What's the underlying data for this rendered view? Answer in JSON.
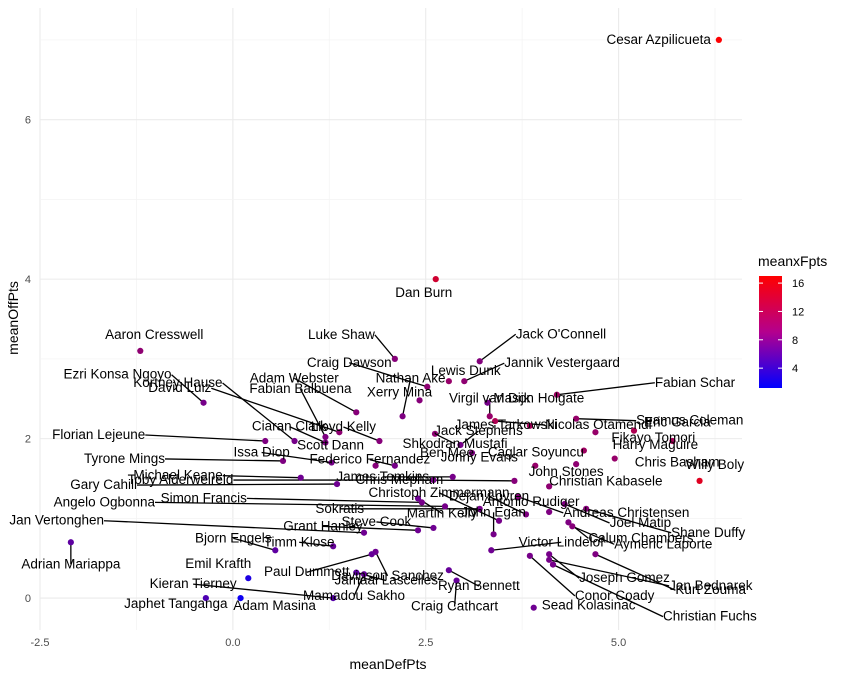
{
  "chart_data": {
    "type": "scatter",
    "title": "",
    "xlabel": "meanDefPts",
    "ylabel": "meanOffPts",
    "xlim": [
      -2.5,
      6.6
    ],
    "ylim": [
      -0.4,
      7.4
    ],
    "xticks": [
      -2.5,
      0.0,
      2.5,
      5.0
    ],
    "xtick_labels": [
      "-2.5",
      "0.0",
      "2.5",
      "5.0"
    ],
    "yticks": [
      0,
      2,
      4,
      6
    ],
    "ytick_labels": [
      "0",
      "2",
      "4",
      "6"
    ],
    "grid": true,
    "color_legend": {
      "title": "meanxFpts",
      "ticks": [
        4,
        8,
        12,
        16
      ],
      "tick_labels": [
        "4",
        "8",
        "12",
        "16"
      ],
      "range": [
        1.2,
        17.0
      ],
      "low_color": "#0000ff",
      "high_color": "#ff0000",
      "placement": "right"
    },
    "points": [
      {
        "name": "Cesar Azpilicueta",
        "x": 6.3,
        "y": 7.0,
        "c": 16.9
      },
      {
        "name": "Dan Burn",
        "x": 2.63,
        "y": 4.0,
        "c": 14.0
      },
      {
        "name": "Aaron Cresswell",
        "x": -1.2,
        "y": 3.1,
        "c": 10.0
      },
      {
        "name": "Luke Shaw",
        "x": 2.1,
        "y": 3.0,
        "c": 9.5
      },
      {
        "name": "Jack O'Connell",
        "x": 3.2,
        "y": 2.97,
        "c": 9.3
      },
      {
        "name": "Lewis Dunk",
        "x": 2.8,
        "y": 2.72,
        "c": 10.5
      },
      {
        "name": "Craig Dawson",
        "x": 2.52,
        "y": 2.65,
        "c": 10.0
      },
      {
        "name": "Jannik Vestergaard",
        "x": 3.0,
        "y": 2.72,
        "c": 10.0
      },
      {
        "name": "Xerry Mina",
        "x": 2.42,
        "y": 2.48,
        "c": 9.5
      },
      {
        "name": "Mason Holgate",
        "x": 3.3,
        "y": 2.45,
        "c": 8.5
      },
      {
        "name": "Fabian Schar",
        "x": 4.2,
        "y": 2.55,
        "c": 11.0
      },
      {
        "name": "Ezri Konsa Ngoyo",
        "x": -0.38,
        "y": 2.45,
        "c": 8.5
      },
      {
        "name": "Adam Webster",
        "x": 1.6,
        "y": 2.33,
        "c": 9.5
      },
      {
        "name": "Kortney Hause",
        "x": 0.8,
        "y": 1.97,
        "c": 8.5
      },
      {
        "name": "Fabian Balbuena",
        "x": 1.2,
        "y": 2.02,
        "c": 9.0
      },
      {
        "name": "Nathan Ake",
        "x": 2.2,
        "y": 2.28,
        "c": 9.0
      },
      {
        "name": "Virgil van Dijk",
        "x": 3.33,
        "y": 2.28,
        "c": 10.5
      },
      {
        "name": "Nicolas Otamendi",
        "x": 3.4,
        "y": 2.22,
        "c": 12.0
      },
      {
        "name": "Seamus Coleman",
        "x": 4.45,
        "y": 2.25,
        "c": 10.5
      },
      {
        "name": "David Luiz",
        "x": 1.38,
        "y": 2.08,
        "c": 10.0
      },
      {
        "name": "Ciaran Clark",
        "x": 1.2,
        "y": 1.95,
        "c": 9.0
      },
      {
        "name": "Shkodran Mustafi",
        "x": 2.62,
        "y": 2.06,
        "c": 10.0
      },
      {
        "name": "James Tarkowski",
        "x": 3.85,
        "y": 2.16,
        "c": 11.5
      },
      {
        "name": "Eric Garcia",
        "x": 5.2,
        "y": 2.1,
        "c": 12.0
      },
      {
        "name": "Florian Lejeune",
        "x": 0.42,
        "y": 1.97,
        "c": 9.0
      },
      {
        "name": "Lloyd Kelly",
        "x": 1.9,
        "y": 1.97,
        "c": 9.5
      },
      {
        "name": "Jack Stephens",
        "x": 2.95,
        "y": 1.92,
        "c": 8.5
      },
      {
        "name": "Ben Mee",
        "x": 3.1,
        "y": 1.82,
        "c": 9.0
      },
      {
        "name": "Caglar Soyuncu",
        "x": 4.55,
        "y": 1.85,
        "c": 11.0
      },
      {
        "name": "Fikayo Tomori",
        "x": 4.7,
        "y": 2.08,
        "c": 10.5
      },
      {
        "name": "Harry Maguire",
        "x": 5.7,
        "y": 1.97,
        "c": 11.5
      },
      {
        "name": "Tyrone Mings",
        "x": 0.65,
        "y": 1.72,
        "c": 9.0
      },
      {
        "name": "Issa Diop",
        "x": 1.28,
        "y": 1.7,
        "c": 8.5
      },
      {
        "name": "Federico Fernandez",
        "x": 2.1,
        "y": 1.66,
        "c": 8.5
      },
      {
        "name": "Scott Dann",
        "x": 1.85,
        "y": 1.66,
        "c": 9.5
      },
      {
        "name": "Jonny Evans",
        "x": 3.92,
        "y": 1.66,
        "c": 10.5
      },
      {
        "name": "John Stones",
        "x": 4.45,
        "y": 1.68,
        "c": 10.0
      },
      {
        "name": "Chris Basham",
        "x": 4.95,
        "y": 1.75,
        "c": 10.5
      },
      {
        "name": "Willy Boly",
        "x": 6.05,
        "y": 1.47,
        "c": 15.0
      },
      {
        "name": "Michael Keane",
        "x": 0.88,
        "y": 1.51,
        "c": 8.0
      },
      {
        "name": "Chris Mepham",
        "x": 3.65,
        "y": 1.47,
        "c": 9.5
      },
      {
        "name": "Christian Kabasele",
        "x": 4.1,
        "y": 1.4,
        "c": 10.0
      },
      {
        "name": "Gary Cahill",
        "x": 1.35,
        "y": 1.43,
        "c": 8.0
      },
      {
        "name": "Toby Alderweireld",
        "x": 2.6,
        "y": 1.48,
        "c": 8.5
      },
      {
        "name": "James Tomkins",
        "x": 2.85,
        "y": 1.52,
        "c": 8.5
      },
      {
        "name": "Martin Kelly",
        "x": 2.4,
        "y": 1.25,
        "c": 8.0
      },
      {
        "name": "Andreas Christensen",
        "x": 3.7,
        "y": 1.27,
        "c": 9.5
      },
      {
        "name": "Angelo Ogbonna",
        "x": 2.75,
        "y": 1.15,
        "c": 8.5
      },
      {
        "name": "Simon Francis",
        "x": 2.45,
        "y": 1.2,
        "c": 8.5
      },
      {
        "name": "Sokratis",
        "x": 3.2,
        "y": 1.12,
        "c": 8.5
      },
      {
        "name": "Dejan Lovren",
        "x": 3.8,
        "y": 1.05,
        "c": 9.0
      },
      {
        "name": "Joel Matip",
        "x": 4.3,
        "y": 1.18,
        "c": 9.0
      },
      {
        "name": "Shane Duffy",
        "x": 4.58,
        "y": 1.12,
        "c": 9.5
      },
      {
        "name": "Jan Vertonghen",
        "x": 1.7,
        "y": 0.82,
        "c": 8.0
      },
      {
        "name": "Grant Hanley",
        "x": 2.4,
        "y": 0.85,
        "c": 8.0
      },
      {
        "name": "Steve Cook",
        "x": 2.6,
        "y": 0.88,
        "c": 8.0
      },
      {
        "name": "Christoph Zimmermann",
        "x": 3.45,
        "y": 0.97,
        "c": 8.5
      },
      {
        "name": "Antonio Rudiger",
        "x": 4.1,
        "y": 1.08,
        "c": 9.0
      },
      {
        "name": "Calum Chambers",
        "x": 4.35,
        "y": 0.95,
        "c": 9.0
      },
      {
        "name": "Aymeric Laporte",
        "x": 4.4,
        "y": 0.9,
        "c": 9.5
      },
      {
        "name": "John Egan",
        "x": 3.38,
        "y": 0.8,
        "c": 8.5
      },
      {
        "name": "Bjorn Engels",
        "x": 0.55,
        "y": 0.6,
        "c": 7.0
      },
      {
        "name": "Timm Klose",
        "x": 1.3,
        "y": 0.65,
        "c": 7.5
      },
      {
        "name": "Davinson Sanchez",
        "x": 1.85,
        "y": 0.58,
        "c": 8.0
      },
      {
        "name": "Victor Lindelof",
        "x": 3.35,
        "y": 0.6,
        "c": 8.0
      },
      {
        "name": "Joseph Gomez",
        "x": 4.1,
        "y": 0.55,
        "c": 8.5
      },
      {
        "name": "Kurt Zouma",
        "x": 4.7,
        "y": 0.55,
        "c": 9.0
      },
      {
        "name": "Adrian Mariappa",
        "x": -2.1,
        "y": 0.7,
        "c": 7.0
      },
      {
        "name": "Paul Dummett",
        "x": 1.8,
        "y": 0.55,
        "c": 7.5
      },
      {
        "name": "Emil Krafth",
        "x": 0.2,
        "y": 0.25,
        "c": 3.0
      },
      {
        "name": "Jamaal Lascelles",
        "x": 1.6,
        "y": 0.32,
        "c": 7.0
      },
      {
        "name": "Ryan Bennett",
        "x": 2.8,
        "y": 0.35,
        "c": 7.5
      },
      {
        "name": "Conor Coady",
        "x": 3.85,
        "y": 0.53,
        "c": 8.5
      },
      {
        "name": "Jan Bednarek",
        "x": 4.1,
        "y": 0.48,
        "c": 8.5
      },
      {
        "name": "Christian Fuchs",
        "x": 4.15,
        "y": 0.42,
        "c": 8.5
      },
      {
        "name": "Mamadou Sakho",
        "x": 1.7,
        "y": 0.3,
        "c": 7.5
      },
      {
        "name": "Craig Cathcart",
        "x": 2.9,
        "y": 0.22,
        "c": 7.5
      },
      {
        "name": "Kieran Tierney",
        "x": 1.3,
        "y": 0.0,
        "c": 6.5
      },
      {
        "name": "Japhet Tanganga",
        "x": -0.35,
        "y": 0.0,
        "c": 6.0
      },
      {
        "name": "Adam Masina",
        "x": 0.1,
        "y": 0.0,
        "c": 2.0
      },
      {
        "name": "Sead Kolasinac",
        "x": 3.9,
        "y": -0.12,
        "c": 8.0
      }
    ]
  }
}
